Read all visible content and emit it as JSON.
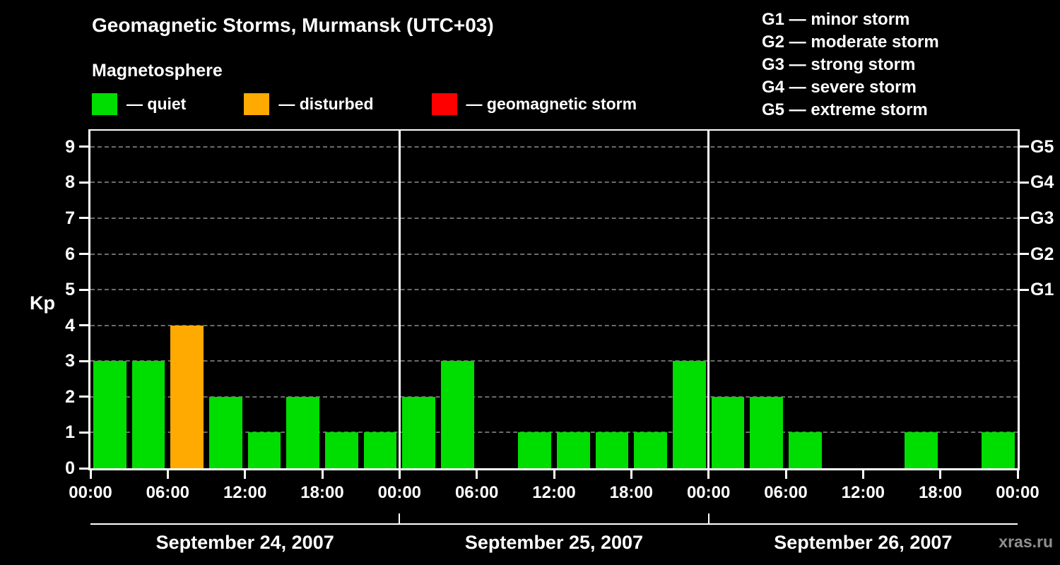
{
  "header": {
    "title": "Geomagnetic Storms, Murmansk (UTC+03)",
    "subtitle": "Magnetosphere"
  },
  "legend": {
    "items": [
      {
        "name": "quiet",
        "label": "— quiet",
        "color": "#00dd00"
      },
      {
        "name": "disturbed",
        "label": "— disturbed",
        "color": "#ffaa00"
      },
      {
        "name": "storm",
        "label": "— geomagnetic storm",
        "color": "#ff0000"
      }
    ]
  },
  "storm_scale_legend": {
    "items": [
      "G1 — minor storm",
      "G2 — moderate storm",
      "G3 — strong storm",
      "G4 — severe storm",
      "G5 — extreme storm"
    ]
  },
  "watermark": "xras.ru",
  "chart_data": {
    "type": "bar",
    "title": "Geomagnetic Storms, Murmansk (UTC+03)",
    "ylabel": "Kp",
    "ylim": [
      0,
      9.45
    ],
    "yticks": [
      0,
      1,
      2,
      3,
      4,
      5,
      6,
      7,
      8,
      9
    ],
    "gridlines": [
      1,
      2,
      3,
      4,
      5,
      6,
      7,
      8,
      9
    ],
    "right_axis": {
      "ticks": [
        {
          "label": "G1",
          "value": 5
        },
        {
          "label": "G2",
          "value": 6
        },
        {
          "label": "G3",
          "value": 7
        },
        {
          "label": "G4",
          "value": 8
        },
        {
          "label": "G5",
          "value": 9
        }
      ]
    },
    "x_tick_labels": [
      "00:00",
      "06:00",
      "12:00",
      "18:00",
      "00:00",
      "06:00",
      "12:00",
      "18:00",
      "00:00",
      "06:00",
      "12:00",
      "18:00",
      "00:00"
    ],
    "bin_hours": 3,
    "bar_colors": {
      "quiet": "#00dd00",
      "disturbed": "#ffaa00",
      "storm": "#ff0000"
    },
    "days": [
      {
        "date": "September 24, 2007",
        "values": [
          3,
          3,
          4,
          2,
          1,
          2,
          1,
          1
        ],
        "statuses": [
          "quiet",
          "quiet",
          "disturbed",
          "quiet",
          "quiet",
          "quiet",
          "quiet",
          "quiet"
        ]
      },
      {
        "date": "September 25, 2007",
        "values": [
          2,
          3,
          0,
          1,
          1,
          1,
          1,
          3
        ],
        "statuses": [
          "quiet",
          "quiet",
          "quiet",
          "quiet",
          "quiet",
          "quiet",
          "quiet",
          "quiet"
        ]
      },
      {
        "date": "September 26, 2007",
        "values": [
          2,
          2,
          1,
          0,
          0,
          1,
          0,
          1
        ],
        "statuses": [
          "quiet",
          "quiet",
          "quiet",
          "quiet",
          "quiet",
          "quiet",
          "quiet",
          "quiet"
        ]
      }
    ]
  }
}
